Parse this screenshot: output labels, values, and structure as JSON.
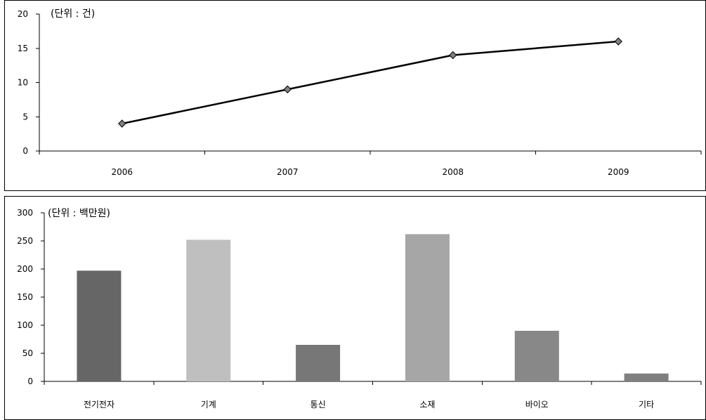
{
  "charts": [
    {
      "unit_label": "(단위 : 건)",
      "chart_data": {
        "type": "line",
        "categories": [
          "2006",
          "2007",
          "2008",
          "2009"
        ],
        "values": [
          4,
          9,
          14,
          16
        ],
        "ylim": [
          0,
          20
        ],
        "yticks": [
          0,
          5,
          10,
          15,
          20
        ],
        "grid": false,
        "marker": "diamond",
        "line_color": "#000000",
        "marker_color": "#808080"
      }
    },
    {
      "unit_label": "(단위 : 백만원)",
      "chart_data": {
        "type": "bar",
        "categories": [
          "전기전자",
          "기계",
          "통신",
          "소재",
          "바이오",
          "기타"
        ],
        "values": [
          197,
          252,
          65,
          262,
          90,
          14
        ],
        "bar_colors": [
          "#666666",
          "#bfbfbf",
          "#777777",
          "#a6a6a6",
          "#888888",
          "#7f7f7f"
        ],
        "ylim": [
          0,
          300
        ],
        "yticks": [
          0,
          50,
          100,
          150,
          200,
          250,
          300
        ],
        "grid": false
      }
    }
  ]
}
